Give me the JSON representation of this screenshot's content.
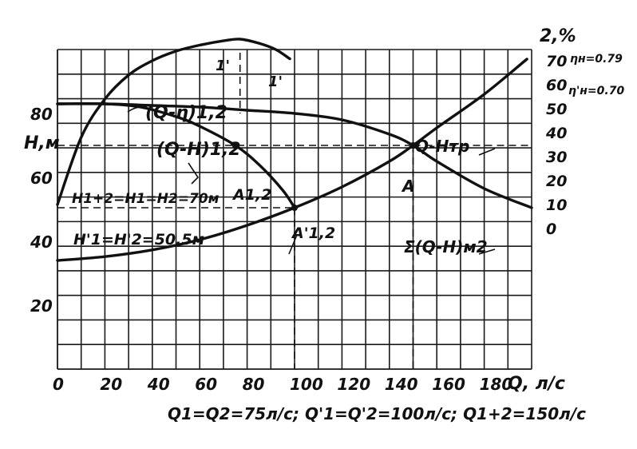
{
  "chart_data": {
    "type": "line",
    "x_ticks": [
      "0",
      "20",
      "40",
      "60",
      "80",
      "100",
      "120",
      "140",
      "160",
      "180"
    ],
    "x_unit_label": "Q, л/с",
    "xlim": [
      0,
      200
    ],
    "left_axis": {
      "label": "H,м",
      "ticks": [
        "20",
        "40",
        "60",
        "80"
      ],
      "ylim": [
        0,
        100
      ]
    },
    "right_axis": {
      "label": "2,%",
      "ticks": [
        "0",
        "10",
        "20",
        "30",
        "40",
        "50",
        "60",
        "70"
      ],
      "eff_marks": [
        "ηн=0.79",
        "η'н=0.70"
      ]
    },
    "series": [
      {
        "name": "(Q-η)1,2",
        "axis": "right",
        "x": [
          0,
          10,
          20,
          30,
          40,
          50,
          60,
          70,
          77,
          85,
          92,
          98
        ],
        "y": [
          10,
          38,
          54,
          64,
          70,
          74,
          76.5,
          78.3,
          79,
          77.3,
          74.7,
          70.8
        ]
      },
      {
        "name": "(Q-H)1,2",
        "axis": "left",
        "x": [
          0,
          20,
          35,
          50,
          60,
          75,
          85,
          95,
          100
        ],
        "y": [
          83,
          83,
          82,
          79,
          76,
          70,
          64,
          56,
          50.5
        ]
      },
      {
        "name": "Σ(Q-H)м2",
        "axis": "left",
        "x": [
          0,
          20,
          40,
          60,
          80,
          100,
          120,
          140,
          150,
          160,
          180,
          200
        ],
        "y": [
          83,
          83,
          82.5,
          82,
          81,
          80,
          78,
          73.5,
          70,
          65,
          56.5,
          50.5
        ]
      },
      {
        "name": "Q-Hтр",
        "axis": "left",
        "x": [
          0,
          20,
          40,
          60,
          80,
          100,
          120,
          140,
          150,
          160,
          180,
          198
        ],
        "y": [
          34,
          35.2,
          37.3,
          40.5,
          45,
          50.5,
          57,
          65,
          70,
          75.5,
          86,
          97
        ]
      }
    ],
    "annotations": {
      "h_lines": [
        "H1+2=H1=H2=70м",
        "H'1=H'2=50.5м"
      ],
      "points": [
        "A",
        "A1,2",
        "A'1,2",
        "1'",
        "1'"
      ],
      "caption": "Q1=Q2=75л/с; Q'1=Q'2=100л/с; Q1+2=150л/с"
    },
    "grid": true
  }
}
